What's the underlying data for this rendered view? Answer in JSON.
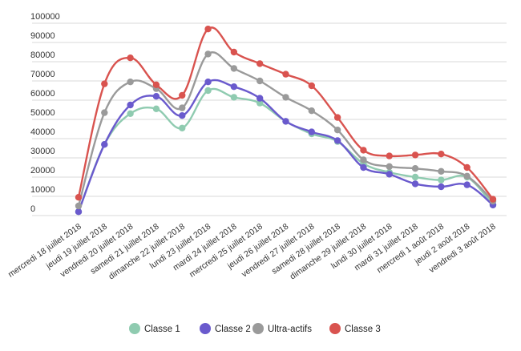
{
  "chart_data": {
    "type": "line",
    "title": "",
    "xlabel": "",
    "ylabel": "",
    "ylim": [
      0,
      100000
    ],
    "yticks": [
      0,
      10000,
      20000,
      30000,
      40000,
      50000,
      60000,
      70000,
      80000,
      90000,
      100000
    ],
    "grid": true,
    "legend_position": "bottom",
    "categories": [
      "mercredi 18 juillet 2018",
      "jeudi 19 juillet 2018",
      "vendredi 20 juillet 2018",
      "samedi 21 juillet 2018",
      "dimanche 22 juillet 2018",
      "lundi 23 juillet 2018",
      "mardi 24 juillet 2018",
      "mercredi 25 juillet 2018",
      "jeudi 26 juillet 2018",
      "vendredi 27 juillet 2018",
      "samedi 28 juillet 2018",
      "dimanche 29 juillet 2018",
      "lundi 30 juillet 2018",
      "mardi 31 juillet 2018",
      "mercredi 1 août 2018",
      "jeudi 2 août 2018",
      "vendredi 3 août 2018"
    ],
    "series": [
      {
        "name": "Classe 1",
        "color": "#8fcbb0",
        "values": [
          2000,
          37000,
          53000,
          55500,
          45500,
          65000,
          61500,
          58500,
          49000,
          42500,
          38500,
          27000,
          22500,
          20000,
          18500,
          20000,
          5500
        ]
      },
      {
        "name": "Classe 2",
        "color": "#6a5acd",
        "values": [
          2000,
          37000,
          57500,
          62000,
          52000,
          69500,
          67000,
          61000,
          49000,
          43500,
          39000,
          25000,
          21500,
          16500,
          15000,
          16000,
          5500
        ]
      },
      {
        "name": "Ultra-actifs",
        "color": "#9a9a9a",
        "values": [
          5000,
          53500,
          69500,
          66000,
          56000,
          84000,
          76500,
          70000,
          61500,
          54500,
          44500,
          29000,
          25500,
          24500,
          23000,
          20500,
          7500
        ]
      },
      {
        "name": "Classe 3",
        "color": "#d9534f",
        "values": [
          9500,
          68500,
          82000,
          68000,
          62500,
          97000,
          85000,
          79000,
          73500,
          67500,
          51000,
          34000,
          31000,
          31500,
          32000,
          25000,
          8500
        ]
      }
    ]
  }
}
